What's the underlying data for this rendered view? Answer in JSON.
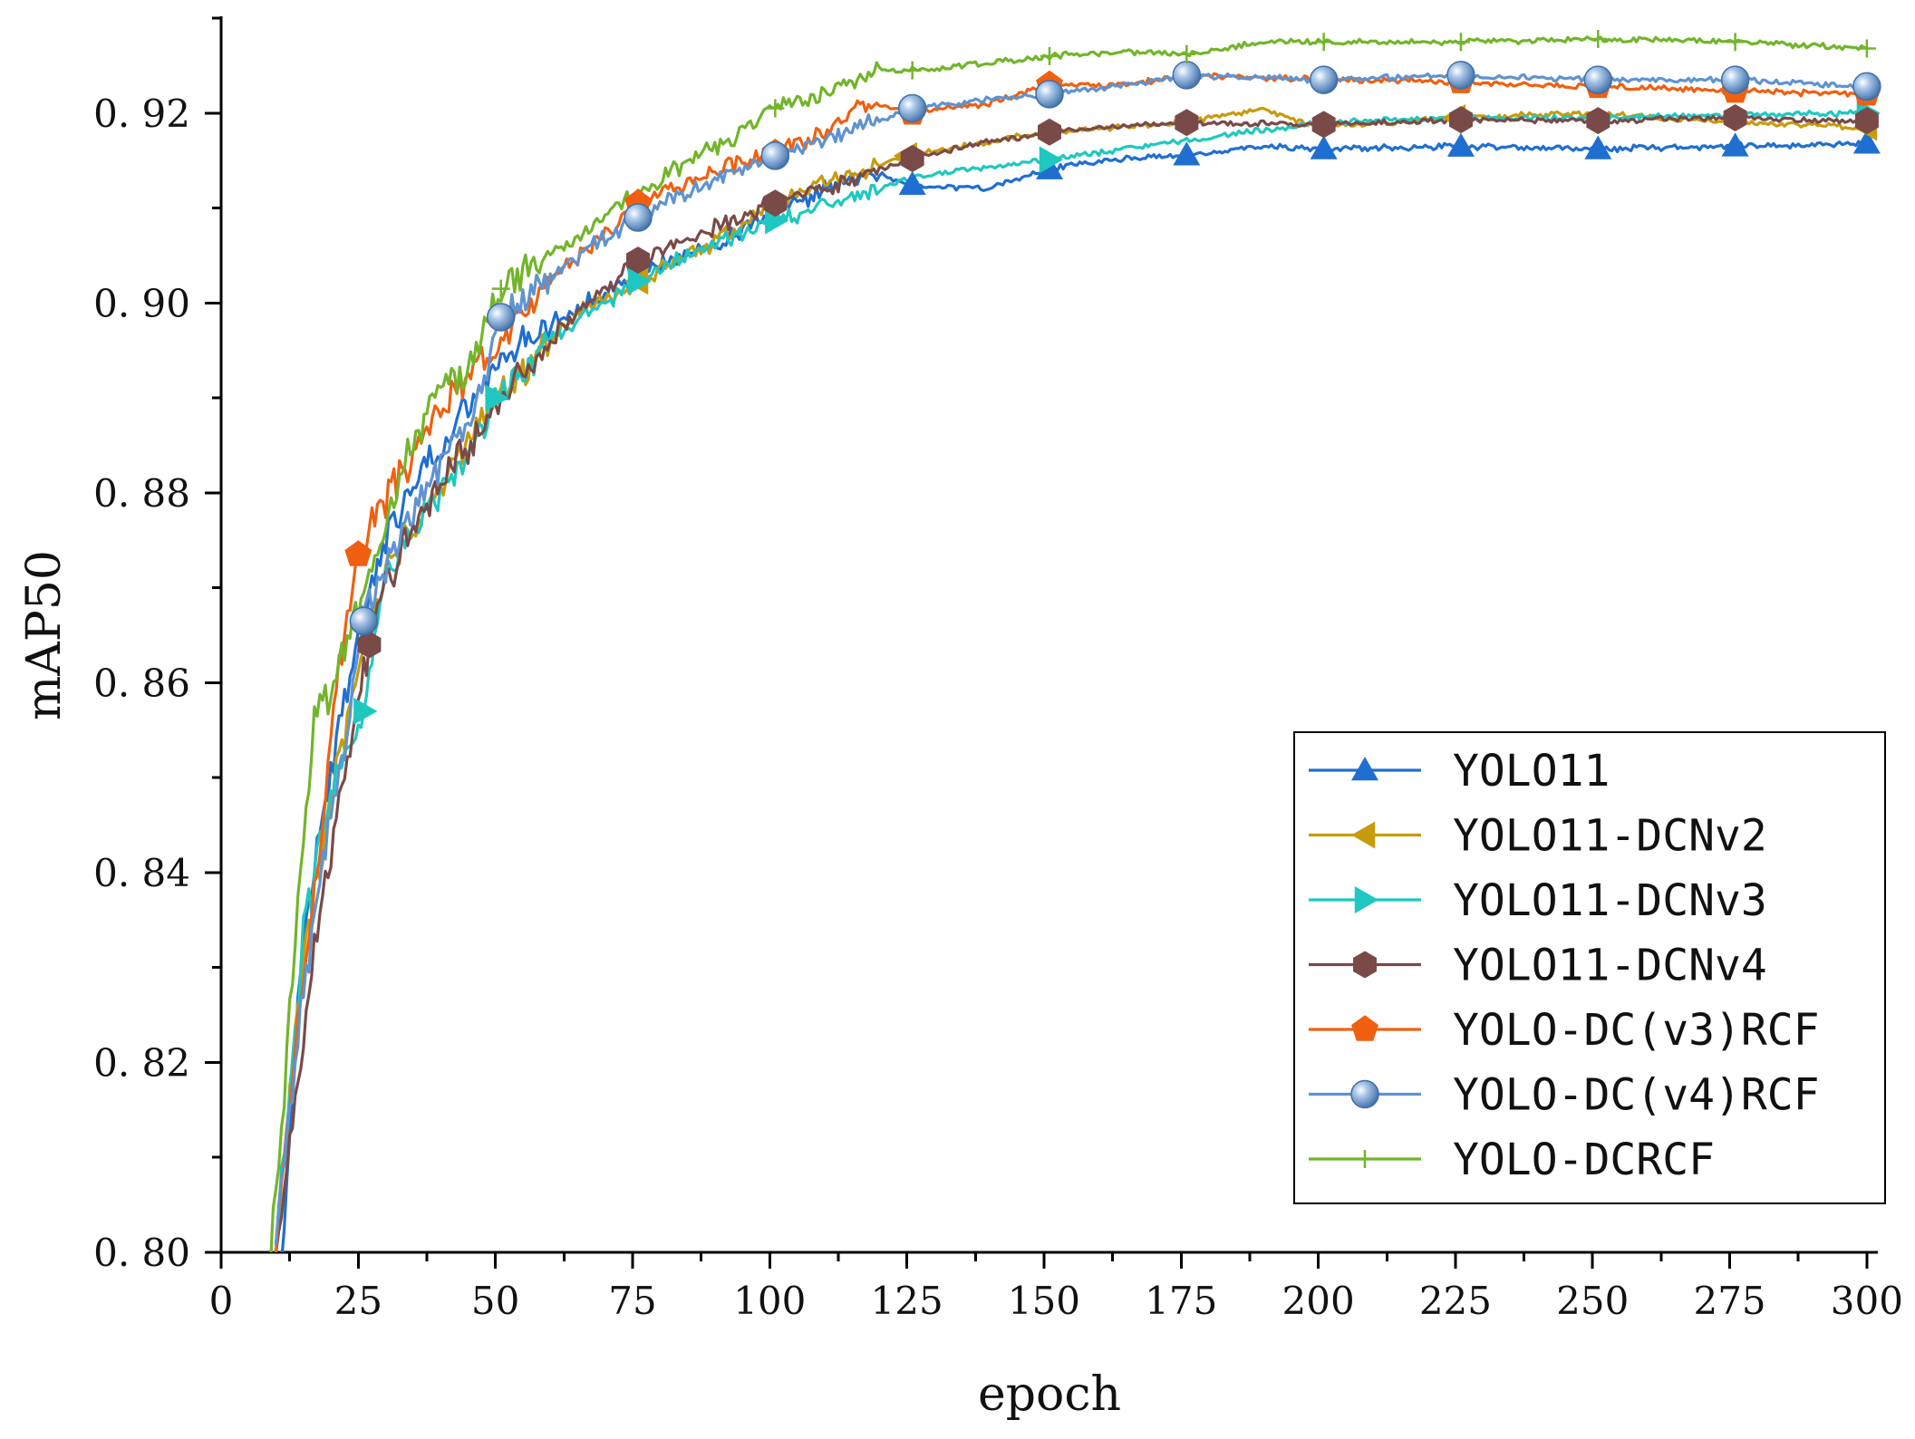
{
  "chart_data": {
    "type": "line",
    "title": "",
    "xlabel": "epoch",
    "ylabel": "mAP50",
    "xlim": [
      0,
      302
    ],
    "ylim": [
      0.8,
      0.93
    ],
    "xticks": [
      0,
      25,
      50,
      75,
      100,
      125,
      150,
      175,
      200,
      225,
      250,
      275,
      300
    ],
    "xtick_labels": [
      "0",
      "25",
      "50",
      "75",
      "100",
      "125",
      "150",
      "175",
      "200",
      "225",
      "250",
      "275",
      "300"
    ],
    "yticks": [
      0.8,
      0.82,
      0.84,
      0.86,
      0.88,
      0.9,
      0.92
    ],
    "ytick_labels": [
      "0. 80",
      "0. 82",
      "0. 84",
      "0. 86",
      "0. 88",
      "0. 90",
      "0. 92"
    ],
    "legend_position": "bottom-right",
    "series": [
      {
        "name": "YOLO11",
        "color": "#1f6fd1",
        "marker": "triangle-up",
        "anchors": [
          [
            11,
            0.8
          ],
          [
            15,
            0.834
          ],
          [
            20,
            0.851
          ],
          [
            25,
            0.865
          ],
          [
            30,
            0.875
          ],
          [
            35,
            0.881
          ],
          [
            40,
            0.884
          ],
          [
            45,
            0.889
          ],
          [
            50,
            0.893
          ],
          [
            55,
            0.896
          ],
          [
            60,
            0.898
          ],
          [
            70,
            0.901
          ],
          [
            80,
            0.904
          ],
          [
            90,
            0.906
          ],
          [
            100,
            0.909
          ],
          [
            110,
            0.912
          ],
          [
            120,
            0.9135
          ],
          [
            125,
            0.9125
          ],
          [
            140,
            0.912
          ],
          [
            150,
            0.914
          ],
          [
            160,
            0.915
          ],
          [
            175,
            0.9155
          ],
          [
            190,
            0.9165
          ],
          [
            200,
            0.9162
          ],
          [
            225,
            0.9165
          ],
          [
            250,
            0.9162
          ],
          [
            275,
            0.9165
          ],
          [
            300,
            0.9168
          ]
        ],
        "markers_x": [
          126,
          151,
          176,
          201,
          226,
          251,
          276,
          300
        ]
      },
      {
        "name": "YOLO11-DCNv2",
        "color": "#c89b0c",
        "marker": "triangle-left",
        "anchors": [
          [
            10,
            0.801
          ],
          [
            15,
            0.831
          ],
          [
            20,
            0.848
          ],
          [
            25,
            0.862
          ],
          [
            30,
            0.872
          ],
          [
            35,
            0.876
          ],
          [
            40,
            0.881
          ],
          [
            45,
            0.886
          ],
          [
            50,
            0.89
          ],
          [
            55,
            0.893
          ],
          [
            60,
            0.896
          ],
          [
            65,
            0.899
          ],
          [
            75,
            0.902
          ],
          [
            85,
            0.905
          ],
          [
            95,
            0.908
          ],
          [
            100,
            0.91
          ],
          [
            110,
            0.9125
          ],
          [
            125,
            0.9155
          ],
          [
            150,
            0.918
          ],
          [
            175,
            0.919
          ],
          [
            190,
            0.9205
          ],
          [
            200,
            0.9185
          ],
          [
            225,
            0.9195
          ],
          [
            250,
            0.92
          ],
          [
            275,
            0.919
          ],
          [
            300,
            0.9185
          ]
        ],
        "markers_x": [
          76,
          125,
          225,
          300
        ]
      },
      {
        "name": "YOLO11-DCNv3",
        "color": "#1ec8c0",
        "marker": "triangle-right",
        "anchors": [
          [
            10,
            0.801
          ],
          [
            15,
            0.833
          ],
          [
            20,
            0.849
          ],
          [
            26,
            0.857
          ],
          [
            30,
            0.871
          ],
          [
            35,
            0.876
          ],
          [
            40,
            0.88
          ],
          [
            45,
            0.884
          ],
          [
            50,
            0.89
          ],
          [
            55,
            0.893
          ],
          [
            60,
            0.896
          ],
          [
            65,
            0.898
          ],
          [
            75,
            0.902
          ],
          [
            85,
            0.905
          ],
          [
            100,
            0.9085
          ],
          [
            115,
            0.911
          ],
          [
            125,
            0.913
          ],
          [
            135,
            0.914
          ],
          [
            150,
            0.915
          ],
          [
            175,
            0.917
          ],
          [
            200,
            0.919
          ],
          [
            225,
            0.9195
          ],
          [
            250,
            0.9195
          ],
          [
            275,
            0.9198
          ],
          [
            300,
            0.92
          ]
        ],
        "markers_x": [
          26,
          50,
          76,
          101,
          151,
          300
        ]
      },
      {
        "name": "YOLO11-DCNv4",
        "color": "#7a4a48",
        "marker": "hexagon",
        "anchors": [
          [
            10,
            0.8
          ],
          [
            14,
            0.818
          ],
          [
            18,
            0.836
          ],
          [
            22,
            0.848
          ],
          [
            27,
            0.864
          ],
          [
            30,
            0.87
          ],
          [
            35,
            0.876
          ],
          [
            40,
            0.881
          ],
          [
            45,
            0.885
          ],
          [
            50,
            0.889
          ],
          [
            55,
            0.893
          ],
          [
            60,
            0.896
          ],
          [
            65,
            0.899
          ],
          [
            76,
            0.9045
          ],
          [
            90,
            0.908
          ],
          [
            101,
            0.9105
          ],
          [
            110,
            0.912
          ],
          [
            126,
            0.9152
          ],
          [
            140,
            0.917
          ],
          [
            151,
            0.918
          ],
          [
            176,
            0.919
          ],
          [
            201,
            0.9188
          ],
          [
            226,
            0.9193
          ],
          [
            251,
            0.9192
          ],
          [
            276,
            0.9195
          ],
          [
            300,
            0.9192
          ]
        ],
        "markers_x": [
          27,
          76,
          101,
          126,
          151,
          176,
          201,
          226,
          251,
          276,
          300
        ]
      },
      {
        "name": "YOLO-DC(v3)RCF",
        "color": "#f06010",
        "marker": "pentagon",
        "anchors": [
          [
            10,
            0.801
          ],
          [
            14,
            0.825
          ],
          [
            18,
            0.842
          ],
          [
            21,
            0.86
          ],
          [
            25,
            0.8735
          ],
          [
            28,
            0.878
          ],
          [
            32,
            0.881
          ],
          [
            36,
            0.885
          ],
          [
            40,
            0.889
          ],
          [
            45,
            0.892
          ],
          [
            51,
            0.897
          ],
          [
            55,
            0.899
          ],
          [
            60,
            0.902
          ],
          [
            65,
            0.905
          ],
          [
            76,
            0.9105
          ],
          [
            90,
            0.914
          ],
          [
            101,
            0.9158
          ],
          [
            110,
            0.918
          ],
          [
            117,
            0.921
          ],
          [
            126,
            0.92
          ],
          [
            140,
            0.921
          ],
          [
            151,
            0.923
          ],
          [
            165,
            0.923
          ],
          [
            176,
            0.924
          ],
          [
            201,
            0.9235
          ],
          [
            226,
            0.9233
          ],
          [
            251,
            0.9228
          ],
          [
            276,
            0.9223
          ],
          [
            300,
            0.922
          ]
        ],
        "markers_x": [
          25,
          76,
          101,
          126,
          151,
          176,
          201,
          226,
          251,
          276,
          300
        ]
      },
      {
        "name": "YOLO-DC(v4)RCF",
        "color": "#5f93d0",
        "marker": "sphere",
        "anchors": [
          [
            10,
            0.801
          ],
          [
            14,
            0.823
          ],
          [
            18,
            0.841
          ],
          [
            22,
            0.852
          ],
          [
            26,
            0.8665
          ],
          [
            30,
            0.872
          ],
          [
            35,
            0.878
          ],
          [
            40,
            0.883
          ],
          [
            45,
            0.887
          ],
          [
            51,
            0.8985
          ],
          [
            55,
            0.901
          ],
          [
            60,
            0.903
          ],
          [
            65,
            0.905
          ],
          [
            76,
            0.909
          ],
          [
            90,
            0.913
          ],
          [
            101,
            0.9155
          ],
          [
            110,
            0.917
          ],
          [
            126,
            0.9205
          ],
          [
            140,
            0.9215
          ],
          [
            151,
            0.922
          ],
          [
            165,
            0.923
          ],
          [
            176,
            0.924
          ],
          [
            201,
            0.9235
          ],
          [
            226,
            0.924
          ],
          [
            251,
            0.9235
          ],
          [
            276,
            0.9235
          ],
          [
            300,
            0.9228
          ]
        ],
        "markers_x": [
          26,
          51,
          76,
          101,
          126,
          151,
          176,
          201,
          226,
          251,
          276,
          300
        ]
      },
      {
        "name": "YOLO-DCRCF",
        "color": "#72b52a",
        "marker": "plus",
        "anchors": [
          [
            9,
            0.8
          ],
          [
            11,
            0.812
          ],
          [
            14,
            0.838
          ],
          [
            17,
            0.856
          ],
          [
            21,
            0.861
          ],
          [
            25,
            0.868
          ],
          [
            30,
            0.877
          ],
          [
            35,
            0.886
          ],
          [
            40,
            0.891
          ],
          [
            45,
            0.893
          ],
          [
            51,
            0.9015
          ],
          [
            60,
            0.905
          ],
          [
            70,
            0.9095
          ],
          [
            76,
            0.9115
          ],
          [
            85,
            0.915
          ],
          [
            95,
            0.918
          ],
          [
            101,
            0.9205
          ],
          [
            110,
            0.922
          ],
          [
            120,
            0.9245
          ],
          [
            126,
            0.9245
          ],
          [
            140,
            0.9253
          ],
          [
            151,
            0.926
          ],
          [
            165,
            0.9265
          ],
          [
            176,
            0.9262
          ],
          [
            190,
            0.9275
          ],
          [
            201,
            0.9275
          ],
          [
            226,
            0.9275
          ],
          [
            251,
            0.9278
          ],
          [
            276,
            0.9275
          ],
          [
            300,
            0.9268
          ]
        ],
        "markers_x": [
          51,
          101,
          126,
          151,
          176,
          201,
          226,
          251,
          276,
          300
        ]
      }
    ]
  }
}
